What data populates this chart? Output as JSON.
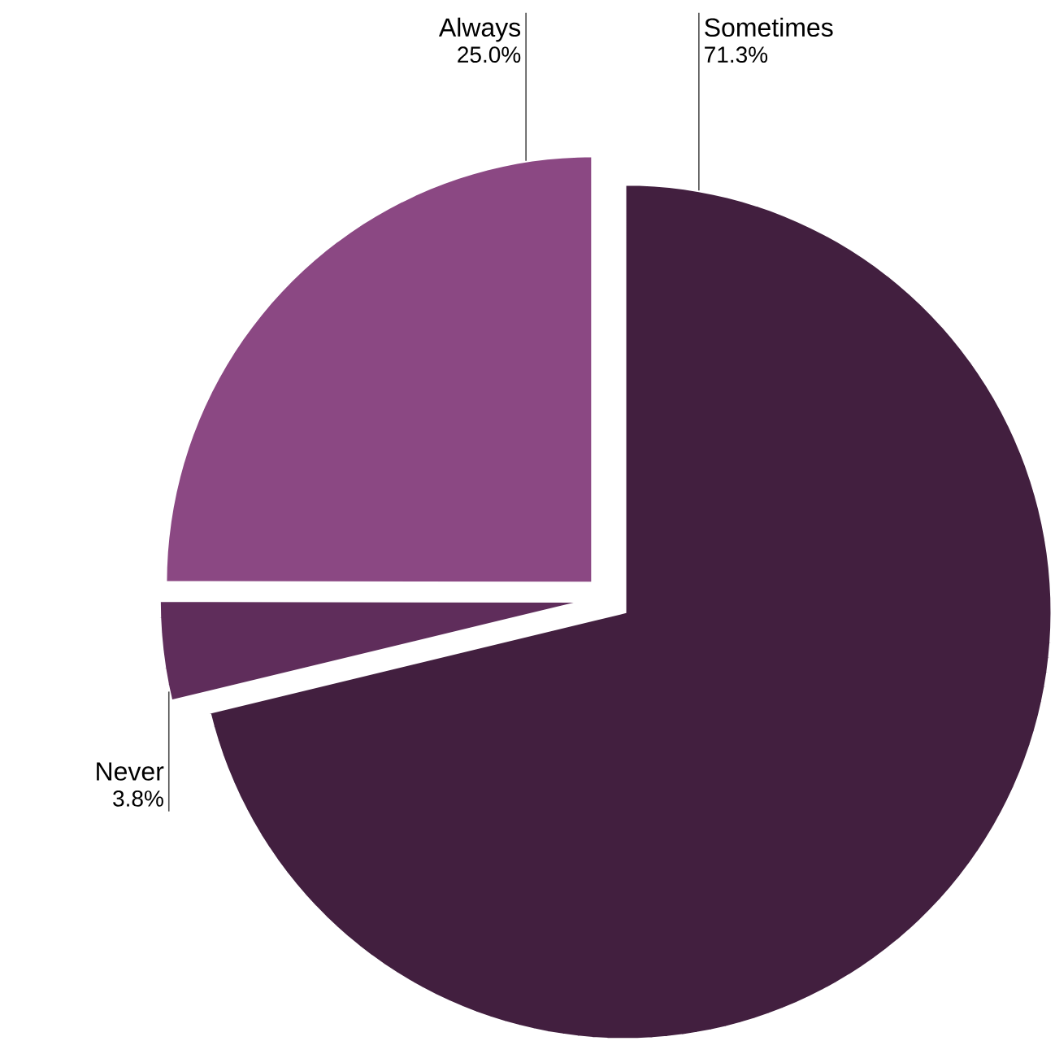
{
  "chart_data": {
    "type": "pie",
    "categories": [
      "Sometimes",
      "Never",
      "Always"
    ],
    "values": [
      71.3,
      3.8,
      25.0
    ],
    "value_labels": [
      "71.3%",
      "3.8%",
      "25.0%"
    ],
    "colors": [
      "#421f3f",
      "#5f2d5b",
      "#8b4883"
    ]
  }
}
